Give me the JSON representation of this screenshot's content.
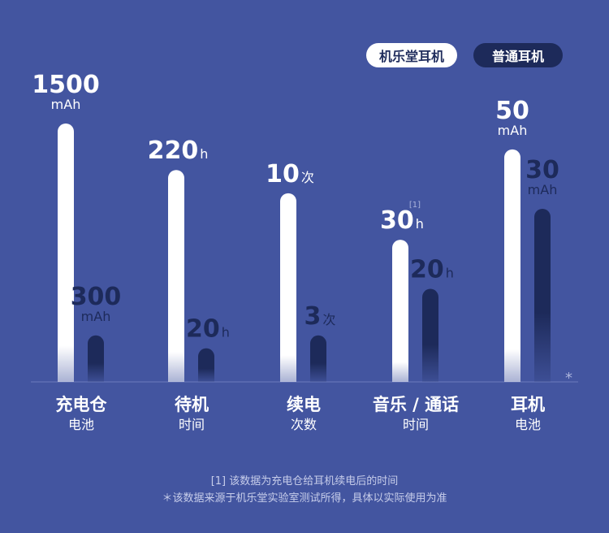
{
  "legend": {
    "item_a": "机乐堂耳机",
    "item_b": "普通耳机"
  },
  "colors": {
    "background": "#4355a0",
    "bar_a": "#ffffff",
    "bar_b": "#1d2a5a",
    "label_a": "#ffffff",
    "label_b": "#1d2a5a"
  },
  "chart_data": {
    "type": "bar",
    "series_names": [
      "机乐堂耳机",
      "普通耳机"
    ],
    "groups": [
      {
        "name": "充电仓",
        "sub": "电池",
        "a": {
          "value": "1500",
          "unit": "mAh"
        },
        "b": {
          "value": "300",
          "unit": "mAh"
        }
      },
      {
        "name": "待机",
        "sub": "时间",
        "a": {
          "value": "220",
          "unit": "h"
        },
        "b": {
          "value": "20",
          "unit": "h"
        }
      },
      {
        "name": "续电",
        "sub": "次数",
        "a": {
          "value": "10",
          "unit": "次"
        },
        "b": {
          "value": "3",
          "unit": "次"
        }
      },
      {
        "name": "音乐 / 通话",
        "sub": "时间",
        "a": {
          "value": "30",
          "unit": "h",
          "note": "[1]"
        },
        "b": {
          "value": "20",
          "unit": "h"
        }
      },
      {
        "name": "耳机",
        "sub": "电池",
        "a": {
          "value": "50",
          "unit": "mAh"
        },
        "b": {
          "value": "30",
          "unit": "mAh"
        }
      }
    ],
    "relative_fill": [
      {
        "a": 1.0,
        "b": 0.18
      },
      {
        "a": 0.82,
        "b": 0.13
      },
      {
        "a": 0.73,
        "b": 0.18
      },
      {
        "a": 0.55,
        "b": 0.36
      },
      {
        "a": 0.9,
        "b": 0.67
      }
    ]
  },
  "star_mark": "*",
  "footnotes": [
    "[1] 该数据为充电仓给耳机续电后的时间",
    "＊该数据来源于机乐堂实验室测试所得，具体以实际使用为准"
  ]
}
